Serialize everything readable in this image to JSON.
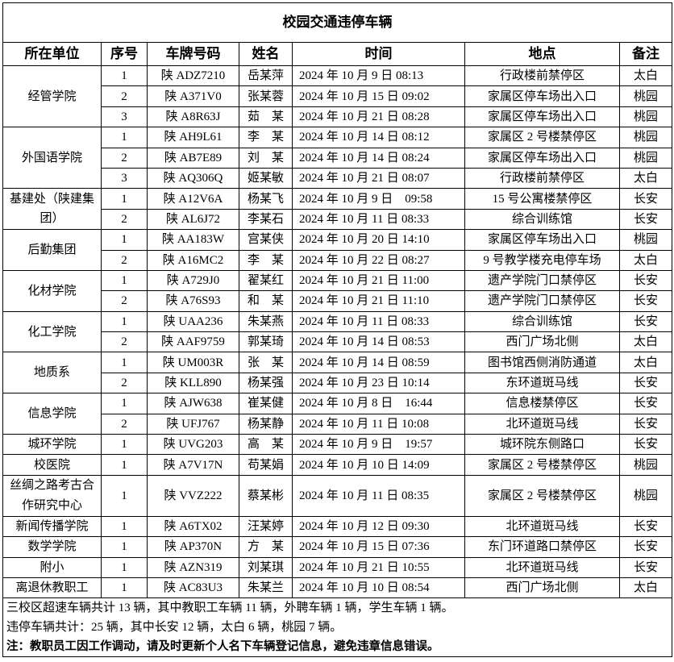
{
  "title": "校园交通违停车辆",
  "headers": [
    "所在单位",
    "序号",
    "车牌号码",
    "姓名",
    "时间",
    "地点",
    "备注"
  ],
  "groups": [
    {
      "unit": "经管学院",
      "rows": [
        [
          "1",
          "陕 ADZ7210",
          "岳某萍",
          "2024 年 10 月 9 日 08:13",
          "行政楼前禁停区",
          "太白"
        ],
        [
          "2",
          "陕 A371V0",
          "张某蓉",
          "2024 年 10 月 15 日 09:02",
          "家属区停车场出入口",
          "桃园"
        ],
        [
          "3",
          "陕 A8R63J",
          "茹　某",
          "2024 年 10 月 21 日 08:28",
          "家属区停车场出入口",
          "桃园"
        ]
      ]
    },
    {
      "unit": "外国语学院",
      "rows": [
        [
          "1",
          "陕 AH9L61",
          "李　某",
          "2024 年 10 月 14 日 08:12",
          "家属区 2 号楼禁停区",
          "桃园"
        ],
        [
          "2",
          "陕 AB7E89",
          "刘　某",
          "2024 年 10 月 14 日 08:24",
          "家属区停车场出入口",
          "桃园"
        ],
        [
          "3",
          "陕 AQ306Q",
          "姬某敏",
          "2024 年 10 月 21 日 08:07",
          "行政楼前禁停区",
          "太白"
        ]
      ]
    },
    {
      "unit": "基建处（陕建集团）",
      "rows": [
        [
          "1",
          "陕 A12V6A",
          "杨某飞",
          "2024 年 10 月 9 日　09:58",
          "15 号公寓楼禁停区",
          "长安"
        ],
        [
          "2",
          "陕 AL6J72",
          "李某石",
          "2024 年 10 月 11 日 08:33",
          "综合训练馆",
          "长安"
        ]
      ]
    },
    {
      "unit": "后勤集团",
      "rows": [
        [
          "1",
          "陕 AA183W",
          "宫某侠",
          "2024 年 10 月 20 日 14:10",
          "家属区停车场出入口",
          "桃园"
        ],
        [
          "2",
          "陕 A16MC2",
          "李　某",
          "2024 年 10 月 22 日 08:27",
          "9 号教学楼充电停车场",
          "太白"
        ]
      ]
    },
    {
      "unit": "化材学院",
      "rows": [
        [
          "1",
          "陕 A729J0",
          "翟某红",
          "2024 年 10 月 21 日 11:00",
          "遗产学院门口禁停区",
          "长安"
        ],
        [
          "2",
          "陕 A76S93",
          "和　某",
          "2024 年 10 月 21 日 11:10",
          "遗产学院门口禁停区",
          "长安"
        ]
      ]
    },
    {
      "unit": "化工学院",
      "rows": [
        [
          "1",
          "陕 UAA236",
          "朱某燕",
          "2024 年 10 月 11 日 08:33",
          "综合训练馆",
          "长安"
        ],
        [
          "2",
          "陕 AAF9759",
          "郭某琦",
          "2024 年 10 月 14 日 08:53",
          "西门广场北侧",
          "太白"
        ]
      ]
    },
    {
      "unit": "地质系",
      "rows": [
        [
          "1",
          "陕 UM003R",
          "张　某",
          "2024 年 10 月 14 日 08:59",
          "图书馆西侧消防通道",
          "太白"
        ],
        [
          "2",
          "陕 KLL890",
          "杨某强",
          "2024 年 10 月 23 日 10:14",
          "东环道斑马线",
          "长安"
        ]
      ]
    },
    {
      "unit": "信息学院",
      "rows": [
        [
          "1",
          "陕 AJW638",
          "崔某健",
          "2024 年 10 月 8 日　16:44",
          "信息楼禁停区",
          "长安"
        ],
        [
          "2",
          "陕 UFJ767",
          "杨某静",
          "2024 年 10 月 11 日 10:08",
          "北环道斑马线",
          "长安"
        ]
      ]
    },
    {
      "unit": "城环学院",
      "rows": [
        [
          "1",
          "陕 UVG203",
          "高　某",
          "2024 年 10 月 9 日　19:57",
          "城环院东侧路口",
          "长安"
        ]
      ]
    },
    {
      "unit": "校医院",
      "rows": [
        [
          "1",
          "陕 A7V17N",
          "苟某娟",
          "2024 年 10 月 10 日 14:09",
          "家属区 2 号楼禁停区",
          "桃园"
        ]
      ]
    },
    {
      "unit": "丝绸之路考古合作研究中心",
      "tall": true,
      "rows": [
        [
          "1",
          "陕 VVZ222",
          "蔡某彬",
          "2024 年 10 月 11 日 08:35",
          "家属区 2 号楼禁停区",
          "桃园"
        ]
      ]
    },
    {
      "unit": "新闻传播学院",
      "rows": [
        [
          "1",
          "陕 A6TX02",
          "汪某婷",
          "2024 年 10 月 12 日 09:30",
          "北环道斑马线",
          "长安"
        ]
      ]
    },
    {
      "unit": "数学学院",
      "rows": [
        [
          "1",
          "陕 AP370N",
          "方　某",
          "2024 年 10 月 15 日 07:36",
          "东门环道路口禁停区",
          "长安"
        ]
      ]
    },
    {
      "unit": "附小",
      "rows": [
        [
          "1",
          "陕 AZN319",
          "刘某琪",
          "2024 年 10 月 21 日 10:55",
          "北环道斑马线",
          "长安"
        ]
      ]
    },
    {
      "unit": "离退休教职工",
      "rows": [
        [
          "1",
          "陕 AC83U3",
          "朱某兰",
          "2024 年 10 月 10 日 08:54",
          "西门广场北侧",
          "太白"
        ]
      ]
    }
  ],
  "footer": [
    "三校区超速车辆共计 13 辆，其中教职工车辆 11 辆，外聘车辆 1 辆，学生车辆 1 辆。",
    "违停车辆共计：25 辆，其中长安 12 辆，太白 6 辆，桃园 7 辆。",
    "注：教职员工因工作调动，请及时更新个人名下车辆登记信息，避免违章信息错误。"
  ]
}
